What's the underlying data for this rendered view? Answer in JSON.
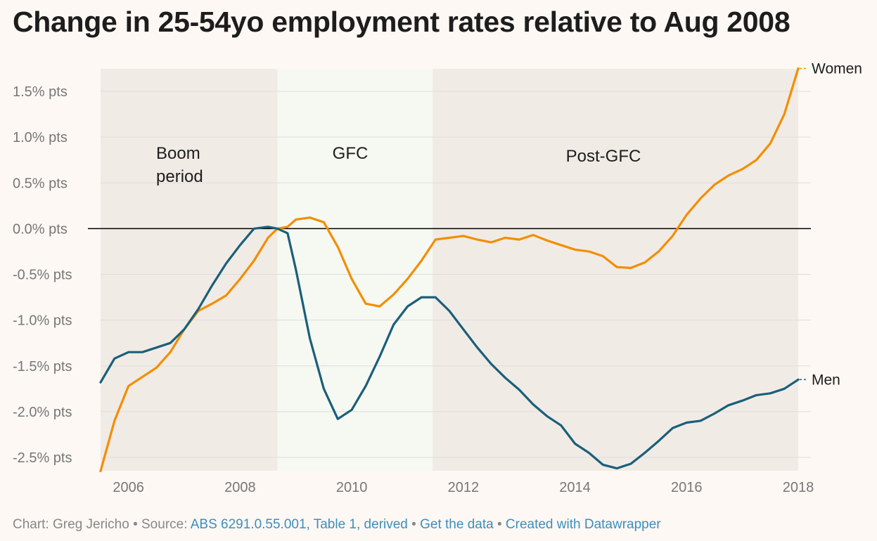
{
  "title": "Change in 25-54yo employment rates relative to Aug 2008",
  "footer": {
    "chart_by": "Chart: Greg Jericho",
    "sep1": " • Source: ",
    "source": "ABS 6291.0.55.001, Table 1, derived",
    "sep2": " • ",
    "get_data": "Get the data",
    "sep3": " • ",
    "created_with": "Created with Datawrapper"
  },
  "colors": {
    "women": "#f28e00",
    "men": "#1a5f7a",
    "band_dark": "#f1ebe6",
    "band_light": "#f6f8f2",
    "zero_line": "#000000",
    "grid": "#dddddd"
  },
  "chart_data": {
    "type": "line",
    "title": "Change in 25-54yo employment rates relative to Aug 2008",
    "xlabel": "",
    "ylabel": "",
    "xlim": [
      2005.5,
      2018.0
    ],
    "ylim": [
      -2.65,
      1.75
    ],
    "x_ticks": [
      2006,
      2008,
      2010,
      2012,
      2014,
      2016,
      2018
    ],
    "x_tick_labels": [
      "2006",
      "2008",
      "2010",
      "2012",
      "2014",
      "2016",
      "2018"
    ],
    "y_ticks": [
      1.5,
      1.0,
      0.5,
      0.0,
      -0.5,
      -1.0,
      -1.5,
      -2.0,
      -2.5
    ],
    "y_tick_labels": [
      "1.5% pts",
      "1.0% pts",
      "0.5% pts",
      "0.0% pts",
      "-0.5% pts",
      "-1.0% pts",
      "-1.5% pts",
      "-2.0% pts",
      "-2.5% pts"
    ],
    "periods": [
      {
        "label_lines": [
          "Boom",
          "period"
        ],
        "start": 2005.5,
        "end": 2008.67,
        "shade": "dark"
      },
      {
        "label_lines": [
          "GFC"
        ],
        "start": 2008.67,
        "end": 2011.45,
        "shade": "light"
      },
      {
        "label_lines": [
          "Post-GFC"
        ],
        "start": 2011.45,
        "end": 2018.0,
        "shade": "dark"
      }
    ],
    "series": [
      {
        "name": "Women",
        "color": "#f28e00",
        "x": [
          2005.5,
          2005.75,
          2006.0,
          2006.25,
          2006.5,
          2006.75,
          2007.0,
          2007.25,
          2007.5,
          2007.75,
          2008.0,
          2008.25,
          2008.5,
          2008.67,
          2008.85,
          2009.0,
          2009.25,
          2009.5,
          2009.75,
          2010.0,
          2010.25,
          2010.5,
          2010.75,
          2011.0,
          2011.25,
          2011.5,
          2011.75,
          2012.0,
          2012.25,
          2012.5,
          2012.75,
          2013.0,
          2013.25,
          2013.5,
          2013.75,
          2014.0,
          2014.25,
          2014.5,
          2014.75,
          2015.0,
          2015.25,
          2015.5,
          2015.75,
          2016.0,
          2016.25,
          2016.5,
          2016.75,
          2017.0,
          2017.25,
          2017.5,
          2017.75,
          2018.0
        ],
        "y": [
          -2.65,
          -2.1,
          -1.72,
          -1.62,
          -1.52,
          -1.35,
          -1.1,
          -0.9,
          -0.82,
          -0.73,
          -0.55,
          -0.35,
          -0.1,
          0.0,
          0.02,
          0.1,
          0.12,
          0.07,
          -0.2,
          -0.55,
          -0.82,
          -0.85,
          -0.72,
          -0.55,
          -0.35,
          -0.12,
          -0.1,
          -0.08,
          -0.12,
          -0.15,
          -0.1,
          -0.12,
          -0.07,
          -0.13,
          -0.18,
          -0.23,
          -0.25,
          -0.3,
          -0.42,
          -0.43,
          -0.37,
          -0.25,
          -0.08,
          0.15,
          0.33,
          0.48,
          0.58,
          0.65,
          0.75,
          0.93,
          1.25,
          1.75
        ]
      },
      {
        "name": "Men",
        "color": "#1a5f7a",
        "x": [
          2005.5,
          2005.75,
          2006.0,
          2006.25,
          2006.5,
          2006.75,
          2007.0,
          2007.25,
          2007.5,
          2007.75,
          2008.0,
          2008.25,
          2008.5,
          2008.67,
          2008.85,
          2009.0,
          2009.25,
          2009.5,
          2009.75,
          2010.0,
          2010.25,
          2010.5,
          2010.75,
          2011.0,
          2011.25,
          2011.5,
          2011.75,
          2012.0,
          2012.25,
          2012.5,
          2012.75,
          2013.0,
          2013.25,
          2013.5,
          2013.75,
          2014.0,
          2014.25,
          2014.5,
          2014.75,
          2015.0,
          2015.25,
          2015.5,
          2015.75,
          2016.0,
          2016.25,
          2016.5,
          2016.75,
          2017.0,
          2017.25,
          2017.5,
          2017.75,
          2018.0
        ],
        "y": [
          -1.68,
          -1.42,
          -1.35,
          -1.35,
          -1.3,
          -1.25,
          -1.1,
          -0.88,
          -0.62,
          -0.38,
          -0.18,
          0.0,
          0.02,
          0.0,
          -0.05,
          -0.45,
          -1.2,
          -1.75,
          -2.08,
          -1.98,
          -1.72,
          -1.4,
          -1.05,
          -0.85,
          -0.75,
          -0.75,
          -0.9,
          -1.1,
          -1.3,
          -1.48,
          -1.63,
          -1.76,
          -1.92,
          -2.05,
          -2.15,
          -2.35,
          -2.45,
          -2.58,
          -2.62,
          -2.57,
          -2.45,
          -2.32,
          -2.18,
          -2.12,
          -2.1,
          -2.02,
          -1.93,
          -1.88,
          -1.82,
          -1.8,
          -1.75,
          -1.65
        ]
      }
    ]
  }
}
